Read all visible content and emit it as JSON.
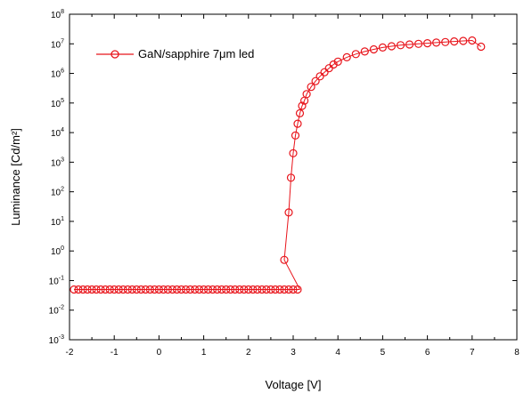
{
  "chart_data": {
    "type": "scatter",
    "title": "",
    "xlabel": "Voltage [V]",
    "ylabel": "Luminance [Cd/m²]",
    "xlim": [
      -2,
      8
    ],
    "ylim_exp": [
      -3,
      8
    ],
    "y_scale": "log",
    "x_ticks": [
      "-2",
      "-1",
      "0",
      "1",
      "2",
      "3",
      "4",
      "5",
      "6",
      "7",
      "8"
    ],
    "y_tick_exponents": [
      "-3",
      "-2",
      "-1",
      "0",
      "1",
      "2",
      "3",
      "4",
      "5",
      "6",
      "7",
      "8"
    ],
    "grid": false,
    "legend_position": "top-left",
    "series": [
      {
        "name": "GaN/sapphire 7μm led",
        "color": "#e8141b",
        "marker": "open-circle",
        "baseline": {
          "x_start": -1.9,
          "x_end": 3.15,
          "x_step": 0.1,
          "y": 0.05
        },
        "x": [
          2.8,
          2.9,
          2.95,
          3.0,
          3.05,
          3.1,
          3.15,
          3.2,
          3.25,
          3.3,
          3.4,
          3.5,
          3.6,
          3.7,
          3.8,
          3.9,
          4.0,
          4.2,
          4.4,
          4.6,
          4.8,
          5.0,
          5.2,
          5.4,
          5.6,
          5.8,
          6.0,
          6.2,
          6.4,
          6.6,
          6.8,
          7.0,
          7.2
        ],
        "y": [
          0.5,
          20,
          300,
          2000,
          8000,
          20000,
          45000,
          80000,
          120000,
          200000,
          350000,
          550000,
          800000,
          1100000,
          1500000,
          2000000,
          2500000,
          3500000,
          4500000,
          5500000,
          6500000,
          7500000,
          8300000,
          9000000,
          9500000,
          10000000,
          10500000,
          11000000,
          11500000,
          12000000,
          12500000,
          13000000,
          8000000
        ]
      }
    ]
  }
}
